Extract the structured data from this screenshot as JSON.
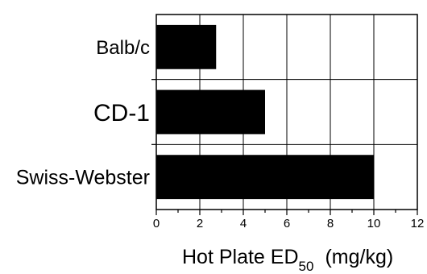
{
  "chart_data": {
    "type": "bar",
    "orientation": "horizontal",
    "categories": [
      "Balb/c",
      "CD-1",
      "Swiss-Webster"
    ],
    "values": [
      2.75,
      5.0,
      10.0
    ],
    "xlim": [
      0,
      12
    ],
    "x_ticks": [
      "0",
      "2",
      "4",
      "6",
      "8",
      "10",
      "12"
    ],
    "xlabel": {
      "prefix": "Hot Plate ED",
      "subscript": "50",
      "suffix": "(mg/kg)"
    },
    "bar_color": "#000000",
    "grid": true,
    "legend": "none"
  }
}
